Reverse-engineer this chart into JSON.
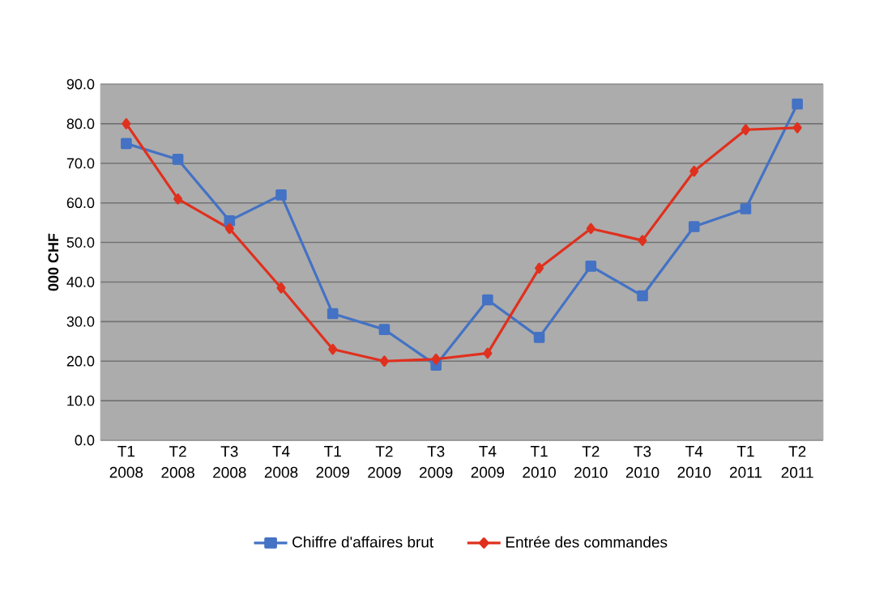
{
  "chart_data": {
    "type": "line",
    "ylabel": "000 CHF",
    "categories": [
      "T1 2008",
      "T2 2008",
      "T3 2008",
      "T4 2008",
      "T1 2009",
      "T2 2009",
      "T3 2009",
      "T4 2009",
      "T1 2010",
      "T2 2010",
      "T3 2010",
      "T4 2010",
      "T1 2011",
      "T2 2011"
    ],
    "series": [
      {
        "name": "Chiffre d'affaires brut",
        "color": "#4472c4",
        "marker": "square",
        "values": [
          75,
          71,
          55.5,
          62,
          32,
          28,
          19,
          35.5,
          26,
          44,
          36.5,
          54,
          58.5,
          85
        ]
      },
      {
        "name": "Entrée des commandes",
        "color": "#e0301e",
        "marker": "diamond",
        "values": [
          80,
          61,
          53.5,
          38.5,
          23,
          20,
          20.5,
          22,
          43.5,
          53.5,
          50.5,
          68,
          78.5,
          79
        ]
      }
    ],
    "ylim": [
      0,
      90
    ],
    "yticks": [
      {
        "value": 0,
        "label": "0.0"
      },
      {
        "value": 10,
        "label": "10.0"
      },
      {
        "value": 20,
        "label": "20.0"
      },
      {
        "value": 30,
        "label": "30.0"
      },
      {
        "value": 40,
        "label": "40.0"
      },
      {
        "value": 50,
        "label": "50.0"
      },
      {
        "value": 60,
        "label": "60.0"
      },
      {
        "value": 70,
        "label": "70.0"
      },
      {
        "value": 80,
        "label": "80.0"
      },
      {
        "value": 90,
        "label": "90.0"
      }
    ],
    "grid": "y",
    "legend": "bottom",
    "line_style": "solid"
  }
}
